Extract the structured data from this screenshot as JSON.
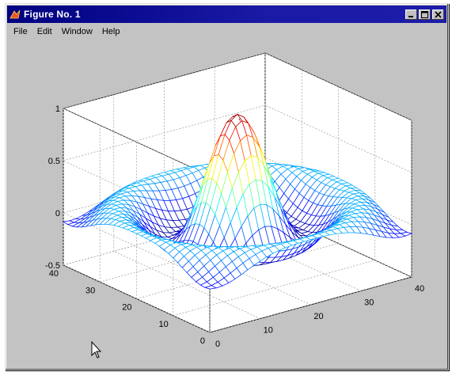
{
  "window": {
    "title": "Figure No. 1",
    "menu": [
      "File",
      "Edit",
      "Window",
      "Help"
    ]
  },
  "colors": {
    "title_bar": "#000080",
    "window_bg": "#c3c3c3",
    "axes_bg": "#ffffff",
    "grid": "#9a9a9a"
  },
  "icons": [
    "matlab-logo-icon",
    "minimize-icon",
    "maximize-icon",
    "close-icon",
    "mouse-cursor-icon"
  ],
  "chart_data": {
    "type": "surface-mesh",
    "function": "sin(r)/r (sinc)",
    "x_range": [
      0,
      40
    ],
    "y_range": [
      0,
      40
    ],
    "z_range": [
      -0.5,
      1
    ],
    "x_ticks": [
      "0",
      "10",
      "20",
      "30",
      "40"
    ],
    "y_ticks": [
      "0",
      "10",
      "20",
      "30",
      "40"
    ],
    "z_ticks": [
      "-0.5",
      "0",
      "0.5",
      "1"
    ],
    "colormap": "jet",
    "grid": true,
    "grid_size": 33
  }
}
